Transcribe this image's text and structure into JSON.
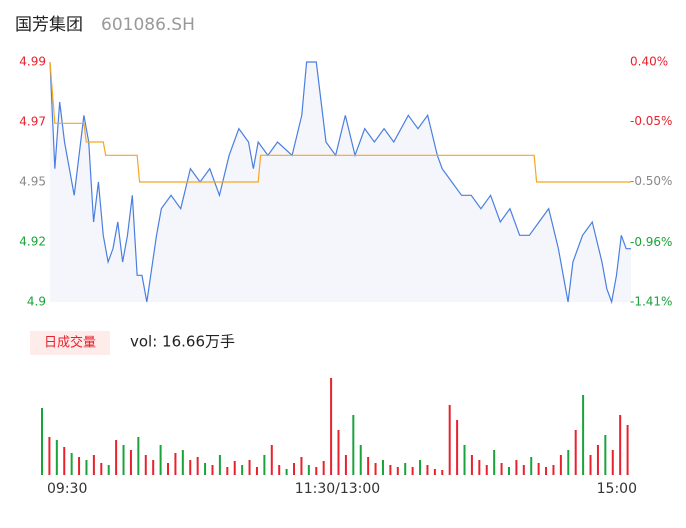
{
  "header": {
    "title": "国芳集团",
    "code": "601086.SH"
  },
  "chart_data": [
    {
      "type": "line",
      "ylim": [
        4.9,
        4.99
      ],
      "yticks": [
        4.9,
        {
          "value": 4.9225,
          "label": "4.92"
        },
        {
          "value": 4.945,
          "label": "4.95"
        },
        {
          "value": 4.9675,
          "label": "4.97"
        },
        4.99
      ],
      "ytick_colors": [
        "#1aa33b",
        "#1aa33b",
        "#888888",
        "#e8222d",
        "#e8222d"
      ],
      "y2lim": [
        -1.41,
        0.4
      ],
      "y2ticks": [
        {
          "value": -1.41,
          "label": "-1.41%"
        },
        {
          "value": -0.96,
          "label": "-0.96%"
        },
        {
          "value": -0.5,
          "label": "-0.50%"
        },
        {
          "value": -0.05,
          "label": "-0.05%"
        },
        {
          "value": 0.4,
          "label": "0.40%"
        }
      ],
      "xlim": [
        0,
        240
      ],
      "area_color": "#f4f6fb",
      "series": [
        {
          "color": "#4a7fe0",
          "x": [
            0,
            2,
            4,
            6,
            8,
            10,
            12,
            14,
            16,
            18,
            20,
            22,
            24,
            26,
            28,
            30,
            32,
            34,
            36,
            38,
            40,
            44,
            46,
            50,
            54,
            58,
            62,
            66,
            70,
            74,
            78,
            82,
            84,
            86,
            90,
            94,
            100,
            104,
            106,
            110,
            112,
            114,
            118,
            122,
            126,
            130,
            134,
            138,
            142,
            148,
            152,
            156,
            160,
            162,
            166,
            170,
            174,
            178,
            182,
            186,
            190,
            194,
            198,
            202,
            206,
            210,
            212,
            214,
            216,
            220,
            224,
            228,
            230,
            232,
            234,
            236,
            238,
            240
          ],
          "values": [
            4.99,
            4.95,
            4.975,
            4.96,
            4.95,
            4.94,
            4.955,
            4.97,
            4.96,
            4.93,
            4.945,
            4.925,
            4.915,
            4.92,
            4.93,
            4.915,
            4.925,
            4.94,
            4.91,
            4.91,
            4.9,
            4.925,
            4.935,
            4.94,
            4.935,
            4.95,
            4.945,
            4.95,
            4.94,
            4.955,
            4.965,
            4.96,
            4.95,
            4.96,
            4.955,
            4.96,
            4.955,
            4.97,
            4.99,
            4.99,
            4.975,
            4.96,
            4.955,
            4.97,
            4.955,
            4.965,
            4.96,
            4.965,
            4.96,
            4.97,
            4.965,
            4.97,
            4.955,
            4.95,
            4.945,
            4.94,
            4.94,
            4.935,
            4.94,
            4.93,
            4.935,
            4.925,
            4.925,
            4.93,
            4.935,
            4.92,
            4.91,
            4.9,
            4.915,
            4.925,
            4.93,
            4.915,
            4.905,
            4.9,
            4.91,
            4.925,
            4.92,
            4.92
          ]
        },
        {
          "color": "#f5a623",
          "x": [
            0,
            2,
            14,
            15,
            22,
            23,
            36,
            37,
            86,
            87,
            200,
            201,
            240
          ],
          "values": [
            4.99,
            4.967,
            4.967,
            4.96,
            4.96,
            4.955,
            4.955,
            4.945,
            4.945,
            4.955,
            4.955,
            4.945,
            4.945
          ]
        }
      ]
    },
    {
      "type": "bar",
      "title": "日成交量",
      "subtitle": "vol: 16.66万手",
      "xlim": [
        0,
        240
      ],
      "xticks": [
        {
          "value": 0,
          "label": "09:30"
        },
        {
          "value": 120,
          "label": "11:30/13:00"
        },
        {
          "value": 240,
          "label": "15:00"
        }
      ],
      "palette": {
        "up": "#e8222d",
        "down": "#1aa33b"
      },
      "x": [
        0,
        3,
        6,
        9,
        12,
        15,
        18,
        21,
        24,
        27,
        30,
        33,
        36,
        39,
        42,
        45,
        48,
        51,
        54,
        57,
        60,
        63,
        66,
        69,
        72,
        75,
        78,
        81,
        84,
        87,
        90,
        93,
        96,
        99,
        102,
        105,
        108,
        111,
        114,
        117,
        120,
        123,
        126,
        129,
        132,
        135,
        138,
        141,
        144,
        147,
        150,
        153,
        156,
        159,
        162,
        165,
        168,
        171,
        174,
        177,
        180,
        183,
        186,
        189,
        192,
        195,
        198,
        201,
        204,
        207,
        210,
        213,
        216,
        219,
        222,
        225,
        228,
        231,
        234,
        237
      ],
      "values": [
        67,
        38,
        35,
        28,
        22,
        18,
        15,
        20,
        12,
        10,
        35,
        30,
        25,
        38,
        20,
        15,
        30,
        12,
        22,
        25,
        15,
        18,
        12,
        10,
        20,
        8,
        14,
        10,
        15,
        8,
        20,
        30,
        10,
        6,
        12,
        18,
        10,
        8,
        14,
        97,
        45,
        20,
        60,
        30,
        18,
        12,
        15,
        10,
        8,
        12,
        8,
        15,
        10,
        6,
        5,
        70,
        55,
        30,
        20,
        15,
        10,
        25,
        12,
        8,
        15,
        10,
        18,
        12,
        8,
        10,
        20,
        25,
        45,
        80,
        20,
        30,
        40,
        25,
        60,
        50
      ],
      "directions": [
        "down",
        "up",
        "down",
        "up",
        "down",
        "up",
        "down",
        "up",
        "up",
        "down",
        "up",
        "down",
        "up",
        "down",
        "up",
        "up",
        "down",
        "up",
        "up",
        "down",
        "up",
        "up",
        "down",
        "up",
        "down",
        "up",
        "up",
        "down",
        "up",
        "up",
        "down",
        "up",
        "up",
        "down",
        "up",
        "up",
        "down",
        "up",
        "up",
        "up",
        "up",
        "up",
        "down",
        "down",
        "up",
        "up",
        "down",
        "up",
        "up",
        "down",
        "up",
        "down",
        "up",
        "up",
        "up",
        "up",
        "up",
        "down",
        "up",
        "up",
        "up",
        "down",
        "up",
        "down",
        "up",
        "up",
        "down",
        "up",
        "up",
        "up",
        "up",
        "down",
        "up",
        "down",
        "up",
        "up",
        "down",
        "up",
        "up",
        "up"
      ]
    }
  ]
}
